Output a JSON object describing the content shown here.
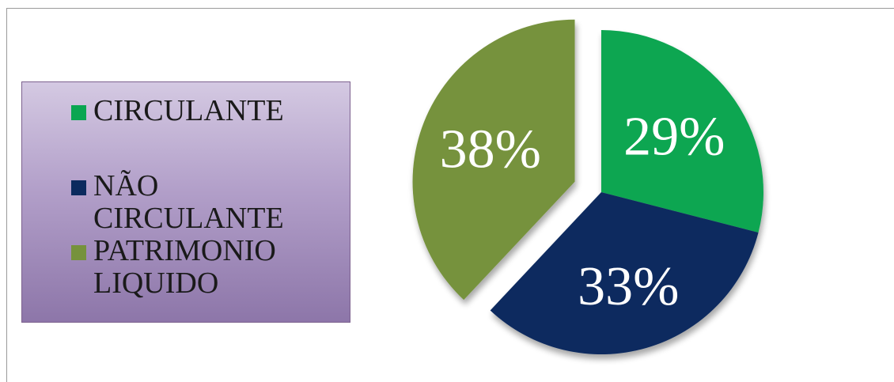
{
  "chart_data": {
    "type": "pie",
    "categories": [
      "CIRCULANTE",
      " NÃO CIRCULANTE",
      "PATRIMONIO LIQUIDO"
    ],
    "values": [
      29,
      33,
      38
    ],
    "data_labels": [
      "29%",
      "33%",
      "38%"
    ],
    "exploded": [
      false,
      false,
      true
    ],
    "legend": "left",
    "colors": [
      "#0aa651",
      "#0b2a5e",
      "#76923c"
    ]
  },
  "legend_items": [
    {
      "label": "CIRCULANTE",
      "color": "#0aa651"
    },
    {
      "label": " NÃO\nCIRCULANTE",
      "color": "#0b2a5e"
    },
    {
      "label": "PATRIMONIO\nLIQUIDO",
      "color": "#76923c"
    }
  ]
}
